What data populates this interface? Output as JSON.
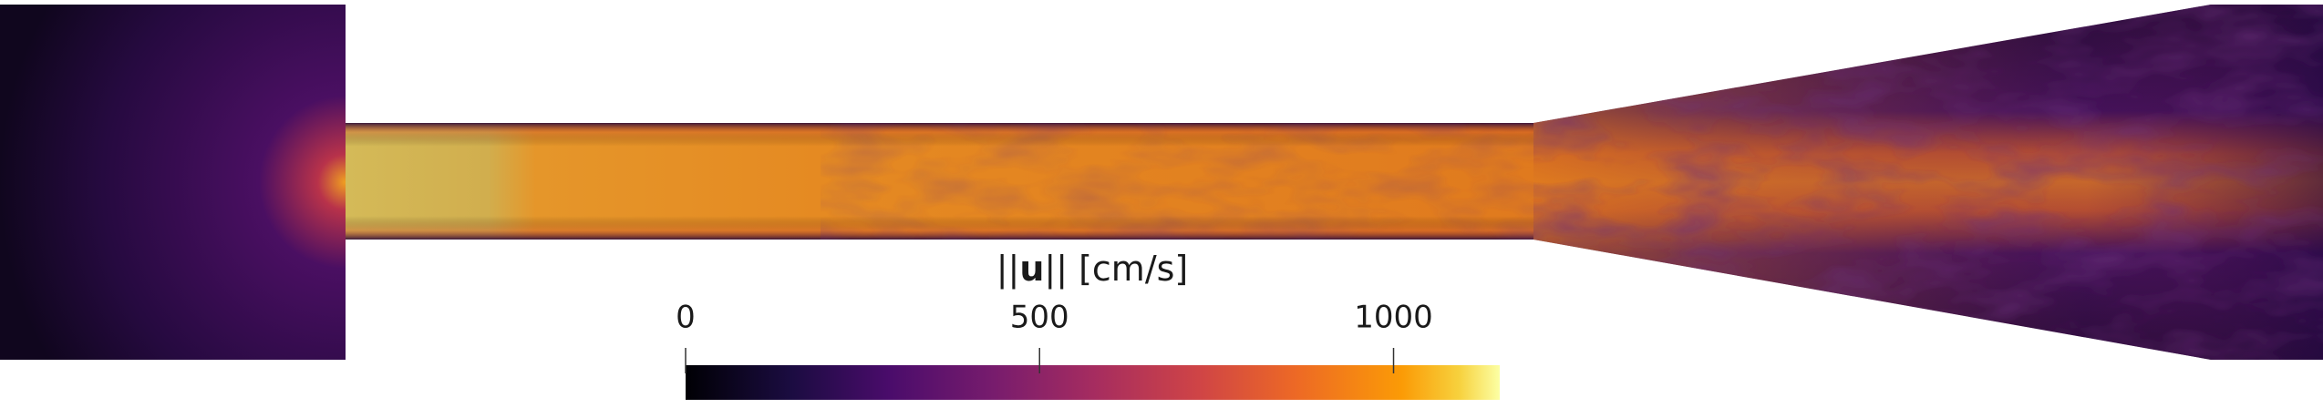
{
  "colorbar": {
    "title_parts": [
      "||",
      "u",
      "|| [cm/s]"
    ],
    "clim": [
      0,
      1150
    ],
    "ticks": [
      0,
      500,
      1000
    ],
    "colormap": "inferno"
  }
}
